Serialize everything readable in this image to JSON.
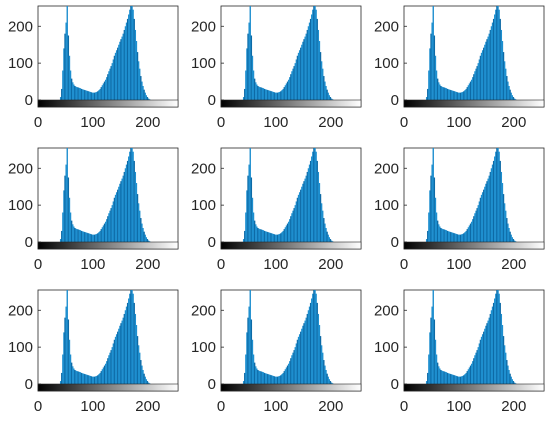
{
  "colors": {
    "bar": "#1e8fcf",
    "bar_dark": "#0d6aa6",
    "axes": "#262626",
    "colorbar_start": "#000000",
    "colorbar_end": "#ffffff"
  },
  "chart_data": {
    "type": "bar",
    "layout": "3x3 grid of identical histograms",
    "count": 9,
    "title": "",
    "xlabel": "",
    "ylabel": "",
    "xlim": [
      0,
      255
    ],
    "ylim": [
      0,
      255
    ],
    "xticks": [
      0,
      100,
      200
    ],
    "yticks": [
      0,
      100,
      200
    ],
    "grid": false,
    "legend": "none",
    "colorbar": "grayscale 0 to 255 below x-axis",
    "series": [
      {
        "bins": [
          {
            "x": 40,
            "y": 8
          },
          {
            "x": 42,
            "y": 30
          },
          {
            "x": 44,
            "y": 80
          },
          {
            "x": 46,
            "y": 140
          },
          {
            "x": 48,
            "y": 180
          },
          {
            "x": 50,
            "y": 210
          },
          {
            "x": 52,
            "y": 255
          },
          {
            "x": 54,
            "y": 175
          },
          {
            "x": 56,
            "y": 120
          },
          {
            "x": 58,
            "y": 80
          },
          {
            "x": 60,
            "y": 58
          },
          {
            "x": 62,
            "y": 48
          },
          {
            "x": 64,
            "y": 42
          },
          {
            "x": 66,
            "y": 38
          },
          {
            "x": 68,
            "y": 36
          },
          {
            "x": 70,
            "y": 35
          },
          {
            "x": 72,
            "y": 34
          },
          {
            "x": 74,
            "y": 33
          },
          {
            "x": 76,
            "y": 32
          },
          {
            "x": 78,
            "y": 30
          },
          {
            "x": 80,
            "y": 29
          },
          {
            "x": 82,
            "y": 28
          },
          {
            "x": 84,
            "y": 27
          },
          {
            "x": 86,
            "y": 26
          },
          {
            "x": 88,
            "y": 25
          },
          {
            "x": 90,
            "y": 24
          },
          {
            "x": 92,
            "y": 23
          },
          {
            "x": 94,
            "y": 22
          },
          {
            "x": 96,
            "y": 21
          },
          {
            "x": 98,
            "y": 20
          },
          {
            "x": 100,
            "y": 20
          },
          {
            "x": 102,
            "y": 20
          },
          {
            "x": 104,
            "y": 21
          },
          {
            "x": 106,
            "y": 22
          },
          {
            "x": 108,
            "y": 24
          },
          {
            "x": 110,
            "y": 27
          },
          {
            "x": 112,
            "y": 30
          },
          {
            "x": 114,
            "y": 35
          },
          {
            "x": 116,
            "y": 40
          },
          {
            "x": 118,
            "y": 45
          },
          {
            "x": 120,
            "y": 50
          },
          {
            "x": 122,
            "y": 55
          },
          {
            "x": 124,
            "y": 62
          },
          {
            "x": 126,
            "y": 70
          },
          {
            "x": 128,
            "y": 78
          },
          {
            "x": 130,
            "y": 85
          },
          {
            "x": 132,
            "y": 92
          },
          {
            "x": 134,
            "y": 100
          },
          {
            "x": 136,
            "y": 110
          },
          {
            "x": 138,
            "y": 120
          },
          {
            "x": 140,
            "y": 128
          },
          {
            "x": 142,
            "y": 135
          },
          {
            "x": 144,
            "y": 142
          },
          {
            "x": 146,
            "y": 150
          },
          {
            "x": 148,
            "y": 158
          },
          {
            "x": 150,
            "y": 165
          },
          {
            "x": 152,
            "y": 172
          },
          {
            "x": 154,
            "y": 180
          },
          {
            "x": 156,
            "y": 190
          },
          {
            "x": 158,
            "y": 200
          },
          {
            "x": 160,
            "y": 210
          },
          {
            "x": 162,
            "y": 220
          },
          {
            "x": 164,
            "y": 232
          },
          {
            "x": 166,
            "y": 245
          },
          {
            "x": 168,
            "y": 255
          },
          {
            "x": 170,
            "y": 255
          },
          {
            "x": 172,
            "y": 245
          },
          {
            "x": 174,
            "y": 220
          },
          {
            "x": 176,
            "y": 190
          },
          {
            "x": 178,
            "y": 160
          },
          {
            "x": 180,
            "y": 130
          },
          {
            "x": 182,
            "y": 105
          },
          {
            "x": 184,
            "y": 85
          },
          {
            "x": 186,
            "y": 65
          },
          {
            "x": 188,
            "y": 50
          },
          {
            "x": 190,
            "y": 38
          },
          {
            "x": 192,
            "y": 28
          },
          {
            "x": 194,
            "y": 20
          },
          {
            "x": 196,
            "y": 13
          },
          {
            "x": 198,
            "y": 8
          },
          {
            "x": 200,
            "y": 4
          },
          {
            "x": 202,
            "y": 2
          }
        ]
      }
    ]
  }
}
